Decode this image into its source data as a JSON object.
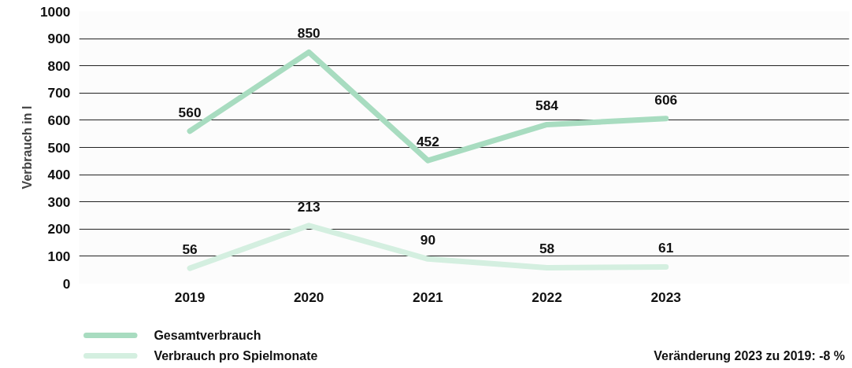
{
  "chart_data": {
    "type": "line",
    "ylabel": "Verbrauch in l",
    "categories": [
      "2019",
      "2020",
      "2021",
      "2022",
      "2023"
    ],
    "series": [
      {
        "name": "Gesamtverbrauch",
        "color": "#a8dcc0",
        "values": [
          560,
          850,
          452,
          584,
          606
        ]
      },
      {
        "name": "Verbrauch pro Spielmonate",
        "color": "#d4efe0",
        "values": [
          56,
          213,
          90,
          58,
          61
        ]
      }
    ],
    "ylim": [
      0,
      1000
    ],
    "yticks": [
      0,
      100,
      200,
      300,
      400,
      500,
      600,
      700,
      800,
      900,
      1000
    ],
    "grid": "y",
    "legend": "bottom left",
    "data_labels": true,
    "marker": "none",
    "line_style": "solid",
    "annotations": [
      "Veränderung 2023 zu 2019: -8 %"
    ]
  }
}
